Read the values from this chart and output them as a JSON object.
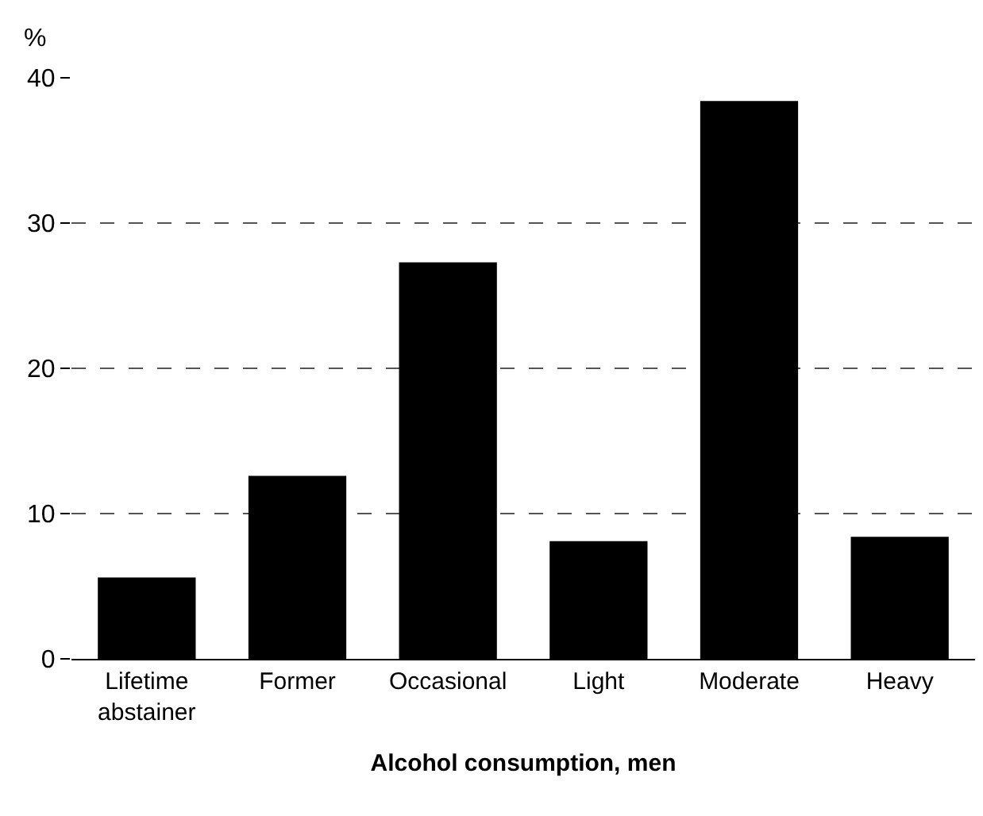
{
  "chart_data": {
    "type": "bar",
    "xlabel": "Alcohol consumption, men",
    "ylabel": "%",
    "categories": [
      "Lifetime abstainer",
      "Former",
      "Occasional",
      "Light",
      "Moderate",
      "Heavy"
    ],
    "values": [
      5.6,
      12.6,
      27.3,
      8.1,
      38.4,
      8.4
    ],
    "color": "#000000",
    "ylim": [
      0,
      40
    ],
    "yticks": [
      0,
      10,
      20,
      30,
      40
    ],
    "grid": "y",
    "line_style": "dashed",
    "legend": false
  }
}
